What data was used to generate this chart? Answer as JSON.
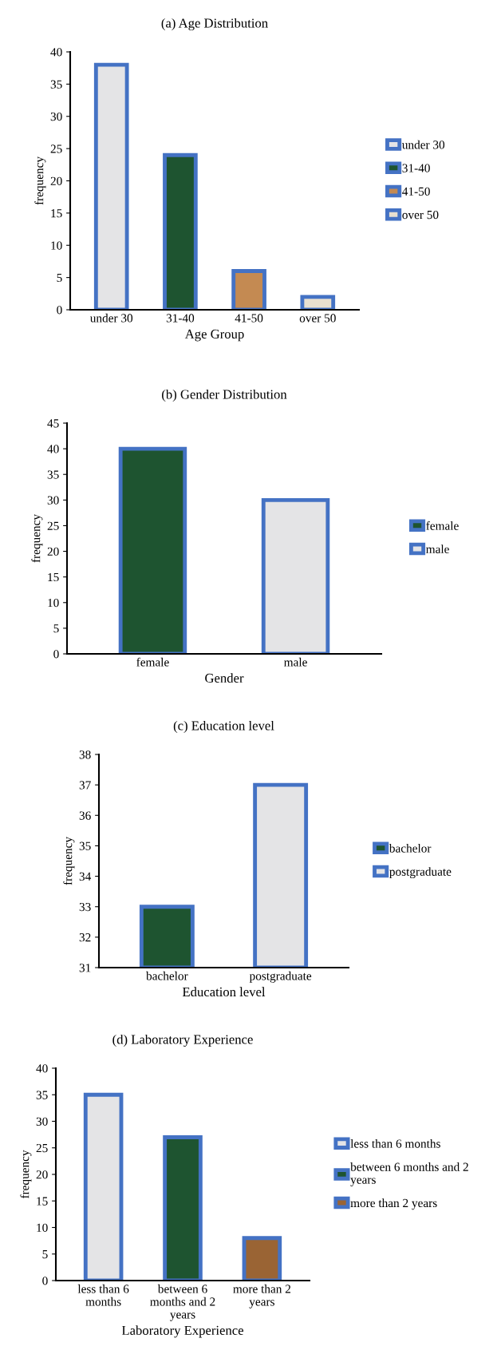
{
  "chart_data": [
    {
      "type": "bar",
      "title": "(a) Age Distribution",
      "xlabel": "Age Group",
      "ylabel": "frequency",
      "categories": [
        "under 30",
        "31-40",
        "41-50",
        "over 50"
      ],
      "series": [
        {
          "name": "under 30",
          "color": "#e4e4e6",
          "values": [
            38,
            null,
            null,
            null
          ]
        },
        {
          "name": "31-40",
          "color": "#1e5430",
          "values": [
            null,
            24,
            null,
            null
          ]
        },
        {
          "name": "41-50",
          "color": "#c48a52",
          "values": [
            null,
            null,
            6,
            null
          ]
        },
        {
          "name": "over 50",
          "color": "#e8e0d0",
          "values": [
            null,
            null,
            null,
            2
          ]
        }
      ],
      "ylim": [
        0,
        40
      ],
      "yticks": [
        0,
        5,
        10,
        15,
        20,
        25,
        30,
        35,
        40
      ],
      "legend": "right"
    },
    {
      "type": "bar",
      "title": "(b) Gender Distribution",
      "xlabel": "Gender",
      "ylabel": "frequency",
      "categories": [
        "female",
        "male"
      ],
      "series": [
        {
          "name": "female",
          "color": "#1e5430",
          "values": [
            40,
            null
          ]
        },
        {
          "name": "male",
          "color": "#e4e4e6",
          "values": [
            null,
            30
          ]
        }
      ],
      "ylim": [
        0,
        45
      ],
      "yticks": [
        0,
        5,
        10,
        15,
        20,
        25,
        30,
        35,
        40,
        45
      ],
      "legend": "right"
    },
    {
      "type": "bar",
      "title": "(c) Education level",
      "xlabel": "Education level",
      "ylabel": "frequency",
      "categories": [
        "bachelor",
        "postgraduate"
      ],
      "series": [
        {
          "name": "bachelor",
          "color": "#1e5430",
          "values": [
            33,
            null
          ]
        },
        {
          "name": "postgraduate",
          "color": "#e4e4e6",
          "values": [
            null,
            37
          ]
        }
      ],
      "ylim": [
        31,
        38
      ],
      "yticks": [
        31,
        32,
        33,
        34,
        35,
        36,
        37,
        38
      ],
      "legend": "right"
    },
    {
      "type": "bar",
      "title": "(d) Laboratory Experience",
      "xlabel": "Laboratory Experience",
      "ylabel": "frequency",
      "categories": [
        "less than 6\nmonths",
        "between 6\nmonths and 2\nyears",
        "more than 2\nyears"
      ],
      "series": [
        {
          "name": "less than 6 months",
          "color": "#e4e4e6",
          "values": [
            35,
            null,
            null
          ]
        },
        {
          "name": "between 6 months and 2\nyears",
          "color": "#1e5430",
          "values": [
            null,
            27,
            null
          ]
        },
        {
          "name": "more than 2 years",
          "color": "#9a6434",
          "values": [
            null,
            null,
            8
          ]
        }
      ],
      "ylim": [
        0,
        40
      ],
      "yticks": [
        0,
        5,
        10,
        15,
        20,
        25,
        30,
        35,
        40
      ],
      "legend": "right"
    }
  ]
}
